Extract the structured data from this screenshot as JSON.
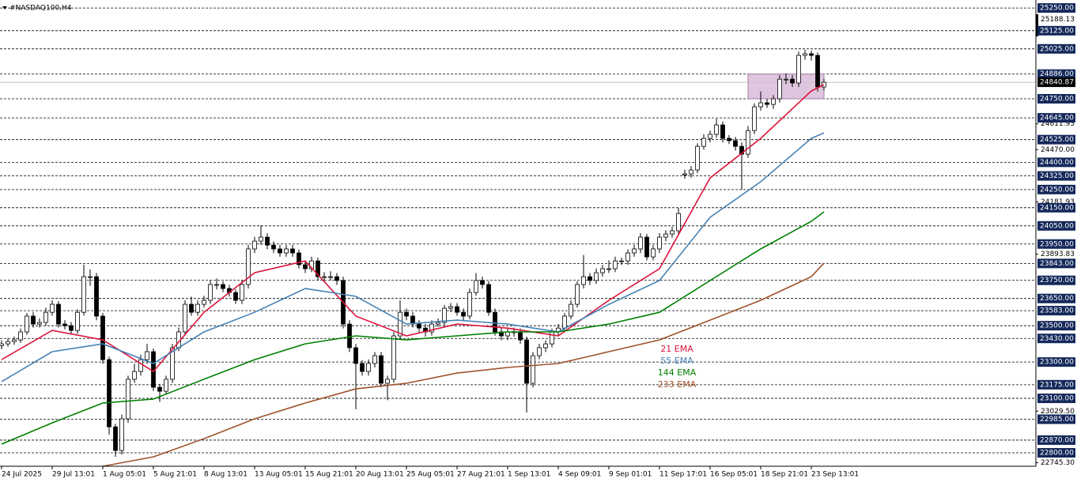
{
  "chart_data": {
    "type": "candlestick",
    "title": "#NASDAQ100,H4",
    "categories": [
      "24 Jul 2025",
      null,
      null,
      null,
      null,
      null,
      null,
      null,
      "29 Jul 13:01",
      null,
      null,
      null,
      null,
      null,
      null,
      null,
      "1 Aug 05:01",
      null,
      null,
      null,
      null,
      null,
      null,
      null,
      "5 Aug 21:01",
      null,
      null,
      null,
      null,
      null,
      null,
      null,
      "8 Aug 13:01",
      null,
      null,
      null,
      null,
      null,
      null,
      null,
      "13 Aug 05:01",
      null,
      null,
      null,
      null,
      null,
      null,
      null,
      "15 Aug 21:01",
      null,
      null,
      null,
      null,
      null,
      null,
      null,
      "20 Aug 13:01",
      null,
      null,
      null,
      null,
      null,
      null,
      null,
      "25 Aug 05:01",
      null,
      null,
      null,
      null,
      null,
      null,
      null,
      "27 Aug 21:01",
      null,
      null,
      null,
      null,
      null,
      null,
      null,
      "1 Sep 13:01",
      null,
      null,
      null,
      null,
      null,
      null,
      null,
      "4 Sep 09:01",
      null,
      null,
      null,
      null,
      null,
      null,
      null,
      "9 Sep 01:01",
      null,
      null,
      null,
      null,
      null,
      null,
      null,
      "11 Sep 17:01",
      null,
      null,
      null,
      null,
      null,
      null,
      null,
      "16 Sep 05:01",
      null,
      null,
      null,
      null,
      null,
      null,
      null,
      "18 Sep 21:01",
      null,
      null,
      null,
      null,
      null,
      null,
      null,
      "23 Sep 13:01",
      null,
      null
    ],
    "ohlc": [
      [
        23390,
        23420,
        23370,
        23400
      ],
      [
        23400,
        23430,
        23385,
        23413
      ],
      [
        23413,
        23440,
        23395,
        23422
      ],
      [
        23422,
        23485,
        23405,
        23466
      ],
      [
        23466,
        23570,
        23450,
        23553
      ],
      [
        23553,
        23575,
        23490,
        23509
      ],
      [
        23509,
        23540,
        23490,
        23518
      ],
      [
        23518,
        23600,
        23500,
        23574
      ],
      [
        23574,
        23640,
        23555,
        23618
      ],
      [
        23618,
        23635,
        23490,
        23509
      ],
      [
        23509,
        23530,
        23480,
        23500
      ],
      [
        23500,
        23520,
        23455,
        23474
      ],
      [
        23474,
        23590,
        23455,
        23574
      ],
      [
        23574,
        23836,
        23555,
        23770
      ],
      [
        23770,
        23810,
        23720,
        23770
      ],
      [
        23770,
        23790,
        23530,
        23553
      ],
      [
        23553,
        23570,
        23290,
        23313
      ],
      [
        23313,
        23330,
        22900,
        22943
      ],
      [
        22943,
        22960,
        22778,
        22813
      ],
      [
        22813,
        23010,
        22790,
        22987
      ],
      [
        22987,
        23225,
        22965,
        23205
      ],
      [
        23205,
        23290,
        23185,
        23248
      ],
      [
        23248,
        23340,
        23225,
        23313
      ],
      [
        23313,
        23400,
        23290,
        23357
      ],
      [
        23357,
        23375,
        23140,
        23161
      ],
      [
        23161,
        23180,
        23080,
        23139
      ],
      [
        23139,
        23225,
        23120,
        23205
      ],
      [
        23205,
        23400,
        23185,
        23379
      ],
      [
        23379,
        23490,
        23360,
        23466
      ],
      [
        23466,
        23640,
        23445,
        23618
      ],
      [
        23618,
        23660,
        23555,
        23574
      ],
      [
        23574,
        23640,
        23555,
        23618
      ],
      [
        23618,
        23665,
        23600,
        23640
      ],
      [
        23640,
        23750,
        23620,
        23727
      ],
      [
        23727,
        23760,
        23700,
        23727
      ],
      [
        23727,
        23745,
        23685,
        23705
      ],
      [
        23705,
        23725,
        23660,
        23683
      ],
      [
        23683,
        23700,
        23620,
        23640
      ],
      [
        23640,
        23750,
        23620,
        23727
      ],
      [
        23727,
        23945,
        23705,
        23923
      ],
      [
        23923,
        23990,
        23900,
        23966
      ],
      [
        23966,
        24053,
        23945,
        23988
      ],
      [
        23988,
        24010,
        23920,
        23944
      ],
      [
        23944,
        23965,
        23900,
        23923
      ],
      [
        23923,
        23945,
        23880,
        23901
      ],
      [
        23901,
        23945,
        23880,
        23923
      ],
      [
        23923,
        23945,
        23880,
        23901
      ],
      [
        23901,
        23920,
        23815,
        23836
      ],
      [
        23836,
        23855,
        23790,
        23814
      ],
      [
        23814,
        23880,
        23795,
        23857
      ],
      [
        23857,
        23875,
        23750,
        23770
      ],
      [
        23770,
        23795,
        23745,
        23770
      ],
      [
        23770,
        23800,
        23750,
        23770
      ],
      [
        23770,
        23790,
        23725,
        23749
      ],
      [
        23749,
        23770,
        23485,
        23509
      ],
      [
        23509,
        23530,
        23355,
        23379
      ],
      [
        23379,
        23400,
        23040,
        23292
      ],
      [
        23292,
        23310,
        23225,
        23248
      ],
      [
        23248,
        23315,
        23225,
        23292
      ],
      [
        23292,
        23355,
        23270,
        23335
      ],
      [
        23335,
        23355,
        23160,
        23183
      ],
      [
        23183,
        23225,
        23090,
        23205
      ],
      [
        23205,
        23465,
        23185,
        23444
      ],
      [
        23444,
        23640,
        23425,
        23574
      ],
      [
        23574,
        23595,
        23530,
        23553
      ],
      [
        23553,
        23575,
        23490,
        23509
      ],
      [
        23509,
        23530,
        23465,
        23487
      ],
      [
        23487,
        23510,
        23440,
        23466
      ],
      [
        23466,
        23530,
        23445,
        23509
      ],
      [
        23509,
        23540,
        23495,
        23518
      ],
      [
        23518,
        23615,
        23500,
        23596
      ],
      [
        23596,
        23625,
        23575,
        23605
      ],
      [
        23605,
        23625,
        23555,
        23574
      ],
      [
        23574,
        23595,
        23530,
        23553
      ],
      [
        23553,
        23705,
        23535,
        23683
      ],
      [
        23683,
        23790,
        23665,
        23749
      ],
      [
        23749,
        23770,
        23705,
        23727
      ],
      [
        23727,
        23745,
        23555,
        23574
      ],
      [
        23574,
        23595,
        23445,
        23466
      ],
      [
        23466,
        23490,
        23420,
        23444
      ],
      [
        23444,
        23485,
        23420,
        23466
      ],
      [
        23466,
        23490,
        23440,
        23466
      ],
      [
        23466,
        23485,
        23400,
        23422
      ],
      [
        23422,
        23440,
        23022,
        23183
      ],
      [
        23183,
        23355,
        23160,
        23335
      ],
      [
        23335,
        23400,
        23315,
        23379
      ],
      [
        23379,
        23420,
        23355,
        23400
      ],
      [
        23400,
        23485,
        23380,
        23466
      ],
      [
        23466,
        23510,
        23445,
        23487
      ],
      [
        23487,
        23570,
        23465,
        23553
      ],
      [
        23553,
        23640,
        23535,
        23618
      ],
      [
        23618,
        23745,
        23600,
        23727
      ],
      [
        23727,
        23890,
        23705,
        23770
      ],
      [
        23770,
        23790,
        23725,
        23749
      ],
      [
        23749,
        23815,
        23730,
        23792
      ],
      [
        23792,
        23835,
        23770,
        23814
      ],
      [
        23814,
        23860,
        23790,
        23814
      ],
      [
        23814,
        23880,
        23795,
        23857
      ],
      [
        23857,
        23875,
        23835,
        23857
      ],
      [
        23857,
        23920,
        23835,
        23901
      ],
      [
        23901,
        23945,
        23880,
        23923
      ],
      [
        23923,
        24010,
        23900,
        23988
      ],
      [
        23988,
        24005,
        23860,
        23879
      ],
      [
        23879,
        23945,
        23860,
        23923
      ],
      [
        23923,
        24010,
        23900,
        23988
      ],
      [
        23988,
        24025,
        23965,
        24005
      ],
      [
        24005,
        24045,
        23985,
        24023
      ],
      [
        24023,
        24150,
        24005,
        24118
      ],
      [
        24330,
        24360,
        24310,
        24336
      ],
      [
        24336,
        24380,
        24315,
        24358
      ],
      [
        24358,
        24505,
        24340,
        24488
      ],
      [
        24488,
        24555,
        24470,
        24532
      ],
      [
        24532,
        24575,
        24510,
        24554
      ],
      [
        24554,
        24640,
        24535,
        24606
      ],
      [
        24606,
        24625,
        24510,
        24532
      ],
      [
        24532,
        24550,
        24500,
        24519
      ],
      [
        24519,
        24540,
        24465,
        24488
      ],
      [
        24488,
        24510,
        24249,
        24445
      ],
      [
        24445,
        24600,
        24425,
        24575
      ],
      [
        24575,
        24725,
        24555,
        24706
      ],
      [
        24706,
        24790,
        24685,
        24728
      ],
      [
        24728,
        24750,
        24700,
        24719
      ],
      [
        24719,
        24770,
        24695,
        24750
      ],
      [
        24750,
        24880,
        24730,
        24858
      ],
      [
        24858,
        24890,
        24830,
        24858
      ],
      [
        24858,
        24880,
        24815,
        24837
      ],
      [
        24837,
        25010,
        24815,
        24989
      ],
      [
        24989,
        25019,
        24965,
        24998
      ],
      [
        24998,
        25015,
        24960,
        24989
      ],
      [
        24989,
        25005,
        24790,
        24815
      ],
      [
        24815,
        24860,
        24795,
        24840.87
      ]
    ],
    "up_color": "#ffffff",
    "down_color": "#000000",
    "current_price": {
      "value": 24840.87,
      "label": "24840.87"
    },
    "ylim": [
      22726,
      25294
    ],
    "yticks": [
      {
        "value": 25188.13,
        "label": "25188.13"
      },
      {
        "value": 24611.93,
        "label": "24611.93"
      },
      {
        "value": 24470,
        "label": "24470.00"
      },
      {
        "value": 24181.93,
        "label": "24181.93"
      },
      {
        "value": 23893.83,
        "label": "23893.83"
      },
      {
        "value": 23029.5,
        "label": "23029.50"
      },
      {
        "value": 22745.3,
        "label": "22745.30"
      }
    ],
    "levels": [
      {
        "value": 25250,
        "label": "25250.00"
      },
      {
        "value": 25125,
        "label": "25125.00"
      },
      {
        "value": 25025,
        "label": "25025.00"
      },
      {
        "value": 24886,
        "label": "24886.00"
      },
      {
        "value": 24750,
        "label": "24750.00"
      },
      {
        "value": 24645,
        "label": "24645.00"
      },
      {
        "value": 24525,
        "label": "24525.00"
      },
      {
        "value": 24400,
        "label": "24400.00"
      },
      {
        "value": 24325,
        "label": "24325.00"
      },
      {
        "value": 24250,
        "label": "24250.00"
      },
      {
        "value": 24150,
        "label": "24150.00"
      },
      {
        "value": 24050,
        "label": "24050.00"
      },
      {
        "value": 23950,
        "label": "23950.00"
      },
      {
        "value": 23843,
        "label": "23843.00"
      },
      {
        "value": 23750,
        "label": "23750.00"
      },
      {
        "value": 23650,
        "label": "23650.00"
      },
      {
        "value": 23583,
        "label": "23583.00"
      },
      {
        "value": 23500,
        "label": "23500.00"
      },
      {
        "value": 23430,
        "label": "23430.00"
      },
      {
        "value": 23300,
        "label": "23300.00"
      },
      {
        "value": 23175,
        "label": "23175.00"
      },
      {
        "value": 23100,
        "label": "23100.00"
      },
      {
        "value": 22985,
        "label": "22985.00"
      },
      {
        "value": 22870,
        "label": "22870.00"
      },
      {
        "value": 22800,
        "label": "22800.00"
      }
    ],
    "series": [
      {
        "name": "21 EMA",
        "color": "#dc143c",
        "x": [
          0,
          8,
          16,
          24,
          32,
          40,
          48,
          56,
          64,
          72,
          80,
          88,
          96,
          104,
          112,
          120,
          128,
          130
        ],
        "values": [
          23313,
          23474,
          23422,
          23248,
          23574,
          23792,
          23857,
          23553,
          23444,
          23509,
          23487,
          23444,
          23640,
          23814,
          24314,
          24532,
          24793,
          24828
        ]
      },
      {
        "name": "55 EMA",
        "color": "#4682b4",
        "x": [
          0,
          8,
          16,
          24,
          32,
          40,
          48,
          56,
          64,
          72,
          80,
          88,
          96,
          104,
          112,
          120,
          128,
          130
        ],
        "values": [
          23192,
          23357,
          23400,
          23292,
          23466,
          23574,
          23705,
          23662,
          23509,
          23531,
          23509,
          23466,
          23618,
          23749,
          24097,
          24293,
          24532,
          24562
        ]
      },
      {
        "name": "144 EMA",
        "color": "#008000",
        "x": [
          0,
          8,
          16,
          24,
          32,
          40,
          48,
          56,
          64,
          72,
          80,
          88,
          96,
          104,
          112,
          120,
          128,
          130
        ],
        "values": [
          22848,
          22965,
          23074,
          23096,
          23205,
          23313,
          23400,
          23444,
          23422,
          23444,
          23466,
          23466,
          23509,
          23574,
          23749,
          23923,
          24075,
          24127
        ]
      },
      {
        "name": "233 EMA",
        "color": "#a0522d",
        "x": [
          16,
          24,
          32,
          40,
          48,
          56,
          64,
          72,
          80,
          88,
          96,
          104,
          112,
          120,
          128,
          130
        ],
        "values": [
          22726,
          22778,
          22878,
          22987,
          23074,
          23152,
          23183,
          23239,
          23270,
          23292,
          23357,
          23422,
          23531,
          23640,
          23770,
          23844
        ]
      }
    ],
    "zone": {
      "x": [
        118,
        130
      ],
      "y": [
        24750,
        24886
      ],
      "color": "#d8bcd8"
    }
  }
}
